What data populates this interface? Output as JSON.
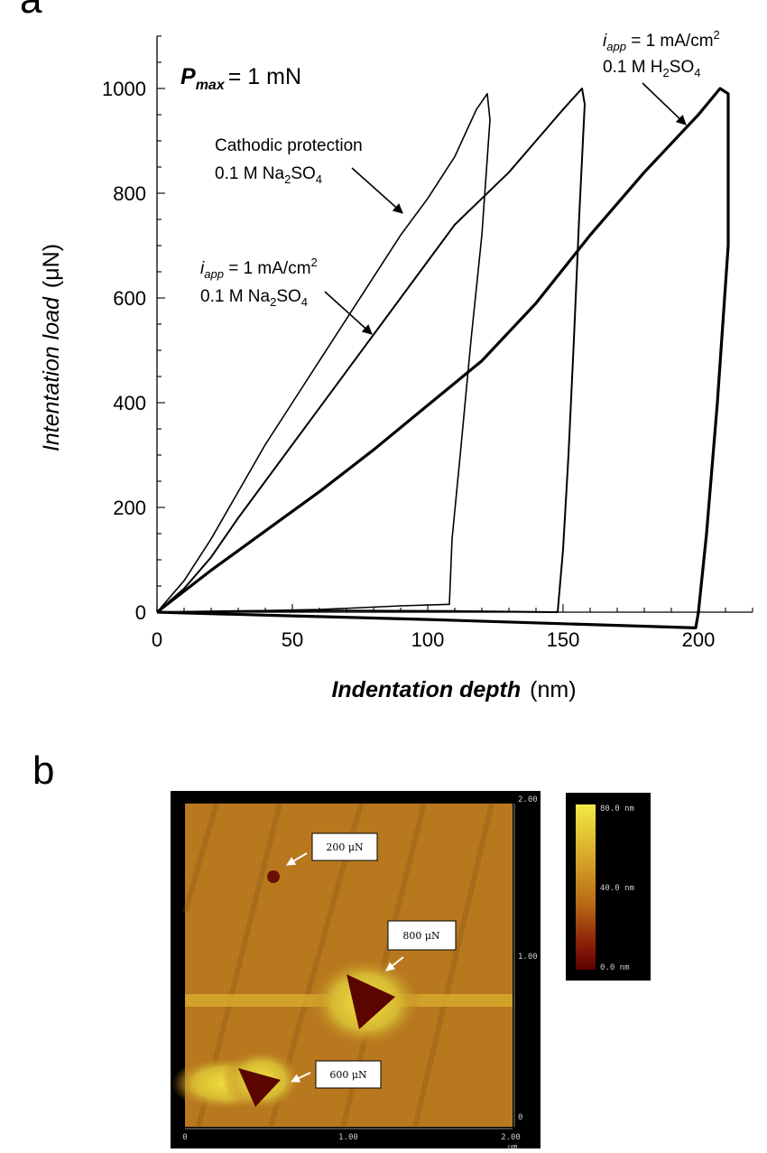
{
  "panels": {
    "a": "a",
    "b": "b"
  },
  "chart_data": {
    "type": "line",
    "xlabel": {
      "main": "Indentation depth",
      "unit": "(nm)"
    },
    "ylabel": {
      "main": "Intentation load",
      "unit": "(μN)"
    },
    "xlim": [
      0,
      220
    ],
    "ylim": [
      0,
      1100
    ],
    "xticks": [
      0,
      50,
      100,
      150,
      200
    ],
    "yticks": [
      0,
      200,
      400,
      600,
      800,
      1000
    ],
    "xtick_labels": [
      "0",
      "50",
      "100",
      "150",
      "200"
    ],
    "ytick_labels": [
      "0",
      "200",
      "400",
      "600",
      "800",
      "1000"
    ],
    "annotation_pmax": {
      "symbol": "P",
      "sub": "max",
      "rest": "= 1 mN"
    },
    "series": [
      {
        "key": "cathodic",
        "label_lines": [
          "Cathodic protection",
          "0.1 M Na2SO4"
        ],
        "stroke_width": 1.6,
        "points": [
          [
            0,
            0
          ],
          [
            10,
            60
          ],
          [
            20,
            140
          ],
          [
            30,
            230
          ],
          [
            40,
            320
          ],
          [
            50,
            400
          ],
          [
            60,
            480
          ],
          [
            70,
            560
          ],
          [
            80,
            640
          ],
          [
            90,
            720
          ],
          [
            100,
            790
          ],
          [
            110,
            870
          ],
          [
            118,
            960
          ],
          [
            122,
            990
          ],
          [
            123,
            940
          ],
          [
            120,
            720
          ],
          [
            116,
            520
          ],
          [
            112,
            300
          ],
          [
            109,
            140
          ],
          [
            108,
            15
          ],
          [
            90,
            12
          ],
          [
            60,
            5
          ],
          [
            30,
            2
          ],
          [
            0,
            0
          ]
        ]
      },
      {
        "key": "iapp_na2so4",
        "label_lines": [
          "iapp = 1 mA/cm2",
          "0.1 M Na2SO4"
        ],
        "stroke_width": 2.0,
        "points": [
          [
            0,
            0
          ],
          [
            10,
            45
          ],
          [
            20,
            105
          ],
          [
            30,
            180
          ],
          [
            40,
            250
          ],
          [
            50,
            320
          ],
          [
            60,
            390
          ],
          [
            70,
            460
          ],
          [
            80,
            530
          ],
          [
            90,
            600
          ],
          [
            100,
            670
          ],
          [
            110,
            740
          ],
          [
            120,
            790
          ],
          [
            130,
            840
          ],
          [
            140,
            900
          ],
          [
            150,
            960
          ],
          [
            157,
            1000
          ],
          [
            158,
            970
          ],
          [
            156,
            760
          ],
          [
            154,
            520
          ],
          [
            152,
            300
          ],
          [
            150,
            120
          ],
          [
            148,
            0
          ],
          [
            110,
            2
          ],
          [
            70,
            3
          ],
          [
            30,
            2
          ],
          [
            0,
            0
          ]
        ]
      },
      {
        "key": "iapp_h2so4",
        "label_lines": [
          "iapp = 1 mA/cm2",
          "0.1 M H2SO4"
        ],
        "stroke_width": 3.2,
        "points": [
          [
            0,
            0
          ],
          [
            20,
            80
          ],
          [
            40,
            155
          ],
          [
            60,
            230
          ],
          [
            80,
            310
          ],
          [
            100,
            395
          ],
          [
            120,
            480
          ],
          [
            140,
            590
          ],
          [
            160,
            720
          ],
          [
            180,
            840
          ],
          [
            200,
            950
          ],
          [
            208,
            1000
          ],
          [
            211,
            990
          ],
          [
            211,
            700
          ],
          [
            207,
            400
          ],
          [
            203,
            150
          ],
          [
            200,
            0
          ],
          [
            199,
            -30
          ],
          [
            150,
            -22
          ],
          [
            100,
            -14
          ],
          [
            50,
            -7
          ],
          [
            0,
            0
          ]
        ]
      }
    ],
    "annotations": [
      {
        "key": "cathodic",
        "line1": "Cathodic protection",
        "line2_pre": "0.1 M Na",
        "line2_sub1": "2",
        "line2_mid": "SO",
        "line2_sub2": "4"
      },
      {
        "key": "iapp_na2so4",
        "i": "i",
        "isub": "app",
        "eq": " = 1 mA/cm",
        "sup": "2",
        "line2_pre": "0.1 M Na",
        "line2_sub1": "2",
        "line2_mid": "SO",
        "line2_sub2": "4"
      },
      {
        "key": "iapp_h2so4",
        "i": "i",
        "isub": "app",
        "eq": " = 1 mA/cm",
        "sup": "2",
        "line2_pre": "0.1 M H",
        "line2_sub1": "2",
        "line2_mid": "SO",
        "line2_sub2": "4"
      }
    ]
  },
  "afm": {
    "x_ticks": [
      "0",
      "1.00",
      "2.00"
    ],
    "x_unit": "μm",
    "y_ticks": [
      "2.00",
      "1.00",
      "0"
    ],
    "callouts": [
      "200 μN",
      "800 μN",
      "600 μN"
    ],
    "colorbar_labels": [
      "80.0 nm",
      "40.0 nm",
      "0.0 nm"
    ],
    "colors": {
      "surface": "#b8781e",
      "dark": "#5a0500",
      "bright": "#e6d030",
      "frame": "#000000"
    }
  }
}
